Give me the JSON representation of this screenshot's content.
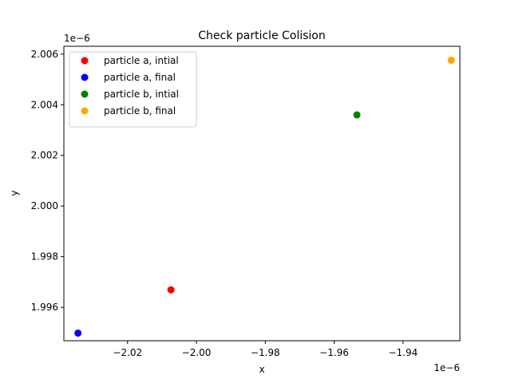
{
  "chart_data": {
    "type": "scatter",
    "title": "Check particle Colision",
    "xlabel": "x",
    "ylabel": "y",
    "x_offset_text": "1e−6",
    "y_offset_text": "1e−6",
    "xlim": [
      -2.0385,
      -1.9235
    ],
    "ylim": [
      1.99468,
      2.00631
    ],
    "x_ticks": [
      -2.02,
      -2.0,
      -1.98,
      -1.96,
      -1.94
    ],
    "x_tick_labels": [
      "−2.02",
      "−2.00",
      "−1.98",
      "−1.96",
      "−1.94"
    ],
    "y_ticks": [
      1.996,
      1.998,
      2.0,
      2.002,
      2.004,
      2.006
    ],
    "y_tick_labels": [
      "1.996",
      "1.998",
      "2.000",
      "2.002",
      "2.004",
      "2.006"
    ],
    "grid": false,
    "legend_position": "top-left",
    "series": [
      {
        "name": "particle a, intial",
        "color": "#ff0000",
        "x": [
          -2.0074
        ],
        "y": [
          1.99669
        ]
      },
      {
        "name": "particle a, final",
        "color": "#0000ff",
        "x": [
          -2.0344
        ],
        "y": [
          1.99498
        ]
      },
      {
        "name": "particle b, intial",
        "color": "#008000",
        "x": [
          -1.9534
        ],
        "y": [
          2.0036
        ]
      },
      {
        "name": "particle b, final",
        "color": "#ffa500",
        "x": [
          -1.926
        ],
        "y": [
          2.00576
        ]
      }
    ]
  }
}
